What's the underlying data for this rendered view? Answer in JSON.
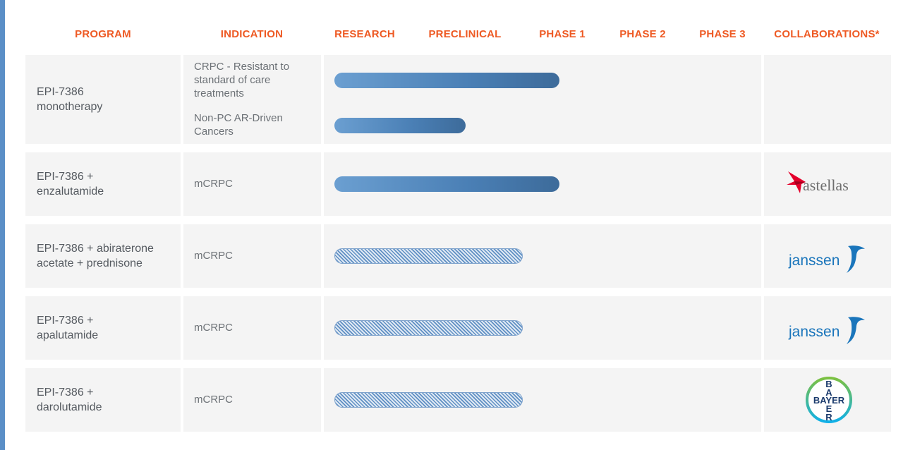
{
  "headers": {
    "program": "PROGRAM",
    "indication": "INDICATION",
    "research": "RESEARCH",
    "preclinical": "PRECLINICAL",
    "phase1": "PHASE 1",
    "phase2": "PHASE 2",
    "phase3": "PHASE 3",
    "collaborations": "COLLABORATIONS*"
  },
  "rows": [
    {
      "program": [
        "EPI-7386",
        "monotherapy"
      ],
      "indications": [
        [
          "CRPC - Resistant to",
          "standard of care",
          "treatments"
        ],
        [
          "Non-PC AR-Driven",
          "Cancers"
        ]
      ],
      "collaborator": ""
    },
    {
      "program": [
        "EPI-7386 +",
        "enzalutamide"
      ],
      "indications": [
        [
          "mCRPC"
        ]
      ],
      "collaborator": "astellas"
    },
    {
      "program": [
        "EPI-7386 + abiraterone",
        "acetate + prednisone"
      ],
      "indications": [
        [
          "mCRPC"
        ]
      ],
      "collaborator": "janssen"
    },
    {
      "program": [
        "EPI-7386 +",
        "apalutamide"
      ],
      "indications": [
        [
          "mCRPC"
        ]
      ],
      "collaborator": "janssen"
    },
    {
      "program": [
        "EPI-7386 +",
        "darolutamide"
      ],
      "indications": [
        [
          "mCRPC"
        ]
      ],
      "collaborator": "BAYER"
    }
  ],
  "chart_data": {
    "type": "bar",
    "stages": [
      "RESEARCH",
      "PRECLINICAL",
      "PHASE 1",
      "PHASE 2",
      "PHASE 3"
    ],
    "bars": [
      {
        "program": "EPI-7386 monotherapy",
        "indication": "CRPC - Resistant to standard of care treatments",
        "progress": 2.75,
        "style": "solid"
      },
      {
        "program": "EPI-7386 monotherapy",
        "indication": "Non-PC AR-Driven Cancers",
        "progress": 1.6,
        "style": "solid"
      },
      {
        "program": "EPI-7386 + enzalutamide",
        "indication": "mCRPC",
        "progress": 2.75,
        "style": "solid"
      },
      {
        "program": "EPI-7386 + abiraterone acetate + prednisone",
        "indication": "mCRPC",
        "progress": 2.3,
        "style": "hatched"
      },
      {
        "program": "EPI-7386 + apalutamide",
        "indication": "mCRPC",
        "progress": 2.3,
        "style": "hatched"
      },
      {
        "program": "EPI-7386 + darolutamide",
        "indication": "mCRPC",
        "progress": 2.3,
        "style": "hatched"
      }
    ]
  },
  "logos": {
    "astellas_star_color": "#e4002b",
    "janssen_color": "#1a75bb",
    "bayer_ring_colors": [
      "#10b0e8",
      "#7cc142"
    ],
    "bayer_text_color": "#1a3a6c",
    "bayer_letters": {
      "vertical": [
        "B",
        "A",
        "Y",
        "E",
        "R"
      ],
      "horizontal": "BAYER"
    }
  }
}
